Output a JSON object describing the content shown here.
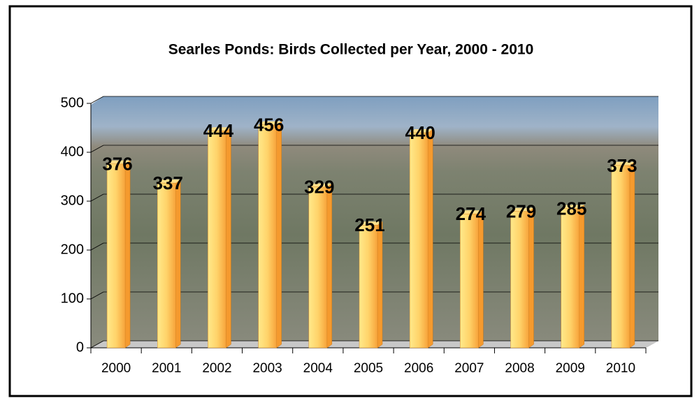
{
  "chart_data": {
    "type": "bar",
    "title": "Searles Ponds:  Birds Collected per Year, 2000 - 2010",
    "categories": [
      "2000",
      "2001",
      "2002",
      "2003",
      "2004",
      "2005",
      "2006",
      "2007",
      "2008",
      "2009",
      "2010"
    ],
    "values": [
      376,
      337,
      444,
      456,
      329,
      251,
      440,
      274,
      279,
      285,
      373
    ],
    "color": "#ffb547",
    "ylim": [
      0,
      500
    ],
    "yticks": [
      0,
      100,
      200,
      300,
      400,
      500
    ],
    "grid": true
  }
}
